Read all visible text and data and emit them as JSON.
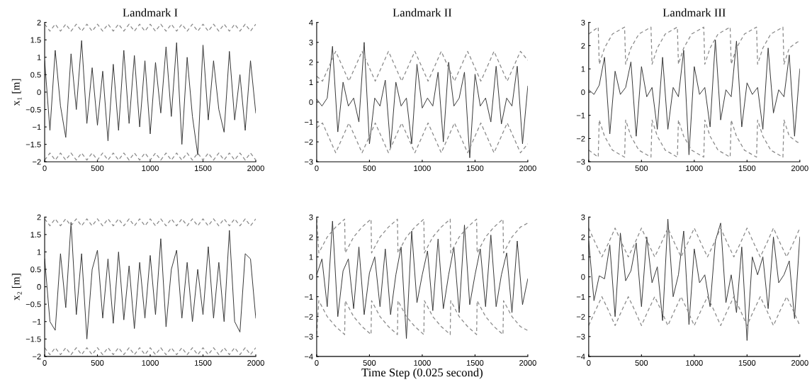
{
  "chart_data": [
    {
      "type": "line",
      "title": "Landmark I",
      "ylabel": "x₁ [m]",
      "xlim": [
        0,
        2000
      ],
      "xticks": [
        0,
        500,
        1000,
        1500,
        2000
      ],
      "ylim": [
        -2,
        2
      ],
      "yticks": [
        -2,
        -1.5,
        -1,
        -0.5,
        0,
        0.5,
        1,
        1.5,
        2
      ],
      "x": [
        0,
        50,
        100,
        150,
        200,
        250,
        300,
        350,
        400,
        450,
        500,
        550,
        600,
        650,
        700,
        750,
        800,
        850,
        900,
        950,
        1000,
        1050,
        1100,
        1150,
        1200,
        1250,
        1300,
        1350,
        1400,
        1450,
        1500,
        1550,
        1600,
        1650,
        1700,
        1750,
        1800,
        1850,
        1900,
        1950,
        2000
      ],
      "series": [
        {
          "color": "#333333",
          "values": [
            0.9,
            -1.1,
            1.2,
            -0.4,
            -1.3,
            1.1,
            -0.5,
            1.48,
            -0.9,
            0.7,
            -0.95,
            0.6,
            -1.4,
            0.8,
            -1.1,
            1.2,
            -0.9,
            1.05,
            -1.0,
            0.9,
            -1.2,
            0.85,
            -0.6,
            1.3,
            -0.7,
            1.42,
            -1.5,
            1.0,
            -0.7,
            -1.8,
            1.35,
            -0.8,
            0.9,
            -0.5,
            -1.15,
            1.17,
            -0.8,
            0.5,
            -1.1,
            0.9,
            -0.6
          ]
        },
        {
          "color": "#888888",
          "line_style": "dashed",
          "values": [
            1.95,
            1.75,
            1.95,
            1.75,
            1.95,
            1.75,
            1.95,
            1.75,
            1.95,
            1.75,
            1.95,
            1.75,
            1.95,
            1.75,
            1.95,
            1.75,
            1.95,
            1.75,
            1.95,
            1.75,
            1.95,
            1.75,
            1.95,
            1.75,
            1.95,
            1.75,
            1.95,
            1.75,
            1.95,
            1.75,
            1.95,
            1.75,
            1.95,
            1.75,
            1.95,
            1.75,
            1.95,
            1.75,
            1.95,
            1.75,
            1.95
          ]
        },
        {
          "color": "#888888",
          "line_style": "dashed",
          "values": [
            -1.95,
            -1.75,
            -1.95,
            -1.75,
            -1.95,
            -1.75,
            -1.95,
            -1.75,
            -1.95,
            -1.75,
            -1.95,
            -1.75,
            -1.95,
            -1.75,
            -1.95,
            -1.75,
            -1.95,
            -1.75,
            -1.95,
            -1.75,
            -1.95,
            -1.75,
            -1.95,
            -1.75,
            -1.95,
            -1.75,
            -1.95,
            -1.75,
            -1.95,
            -1.75,
            -1.95,
            -1.75,
            -1.95,
            -1.75,
            -1.95,
            -1.75,
            -1.95,
            -1.75,
            -1.95,
            -1.75,
            -1.95
          ]
        }
      ]
    },
    {
      "type": "line",
      "title": "Landmark II",
      "xlim": [
        0,
        2000
      ],
      "xticks": [
        0,
        500,
        1000,
        1500,
        2000
      ],
      "ylim": [
        -3,
        4
      ],
      "yticks": [
        -3,
        -2,
        -1,
        0,
        1,
        2,
        3,
        4
      ],
      "x": [
        0,
        50,
        100,
        150,
        200,
        250,
        300,
        350,
        400,
        450,
        500,
        550,
        600,
        650,
        700,
        750,
        800,
        850,
        900,
        950,
        1000,
        1050,
        1100,
        1150,
        1200,
        1250,
        1300,
        1350,
        1400,
        1450,
        1500,
        1550,
        1600,
        1650,
        1700,
        1750,
        1800,
        1850,
        1900,
        1950,
        2000
      ],
      "series": [
        {
          "color": "#333333",
          "values": [
            0.15,
            -0.2,
            0.2,
            2.8,
            -1.5,
            1.0,
            -0.2,
            0.2,
            -1.0,
            3.0,
            -2.1,
            0.2,
            -0.2,
            1.1,
            -2.3,
            1.0,
            -0.2,
            0.2,
            -2.1,
            1.9,
            -0.3,
            0.2,
            -0.2,
            1.5,
            -2.0,
            2.0,
            -0.2,
            0.2,
            1.5,
            -2.8,
            1.4,
            -0.2,
            0.2,
            -1.0,
            1.8,
            -1.1,
            0.2,
            -0.2,
            1.8,
            -2.1,
            0.8
          ]
        },
        {
          "color": "#888888",
          "line_style": "dashed",
          "x": [
            0,
            55,
            118,
            180,
            243,
            305,
            368,
            430,
            493,
            555,
            618,
            680,
            743,
            805,
            868,
            930,
            993,
            1055,
            1118,
            1180,
            1243,
            1305,
            1368,
            1430,
            1493,
            1555,
            1618,
            1680,
            1743,
            1805,
            1868,
            1930,
            2000
          ],
          "values": [
            1.3,
            1.05,
            1.8,
            2.55,
            1.8,
            1.05,
            1.8,
            2.55,
            1.8,
            1.05,
            1.8,
            2.55,
            1.8,
            1.05,
            1.8,
            2.55,
            1.8,
            1.05,
            1.8,
            2.55,
            1.8,
            1.05,
            1.8,
            2.55,
            1.8,
            1.05,
            1.8,
            2.55,
            1.8,
            1.05,
            1.8,
            2.55,
            2.1
          ]
        },
        {
          "color": "#888888",
          "line_style": "dashed",
          "x": [
            0,
            55,
            118,
            180,
            243,
            305,
            368,
            430,
            493,
            555,
            618,
            680,
            743,
            805,
            868,
            930,
            993,
            1055,
            1118,
            1180,
            1243,
            1305,
            1368,
            1430,
            1493,
            1555,
            1618,
            1680,
            1743,
            1805,
            1868,
            1930,
            2000
          ],
          "values": [
            -1.3,
            -1.05,
            -1.8,
            -2.55,
            -1.8,
            -1.05,
            -1.8,
            -2.55,
            -1.8,
            -1.05,
            -1.8,
            -2.55,
            -1.8,
            -1.05,
            -1.8,
            -2.55,
            -1.8,
            -1.05,
            -1.8,
            -2.55,
            -1.8,
            -1.05,
            -1.8,
            -2.55,
            -1.8,
            -1.05,
            -1.8,
            -2.55,
            -1.8,
            -1.05,
            -1.8,
            -2.55,
            -2.1
          ]
        }
      ]
    },
    {
      "type": "line",
      "title": "Landmark III",
      "xlim": [
        0,
        2000
      ],
      "xticks": [
        0,
        500,
        1000,
        1500,
        2000
      ],
      "ylim": [
        -3,
        3
      ],
      "yticks": [
        -3,
        -2,
        -1,
        0,
        1,
        2,
        3
      ],
      "x": [
        0,
        50,
        100,
        150,
        200,
        250,
        300,
        350,
        400,
        450,
        500,
        550,
        600,
        650,
        700,
        750,
        800,
        850,
        900,
        950,
        1000,
        1050,
        1100,
        1150,
        1200,
        1250,
        1300,
        1350,
        1400,
        1450,
        1500,
        1550,
        1600,
        1650,
        1700,
        1750,
        1800,
        1850,
        1900,
        1950,
        2000
      ],
      "series": [
        {
          "color": "#333333",
          "values": [
            0.1,
            -0.1,
            0.3,
            1.5,
            -1.8,
            0.9,
            -0.1,
            0.2,
            1.3,
            -1.9,
            1.1,
            -0.2,
            0.2,
            -1.6,
            1.5,
            -1.6,
            0.2,
            -0.2,
            1.8,
            -2.7,
            1.1,
            -0.1,
            0.2,
            -1.5,
            2.25,
            -1.2,
            0.1,
            -0.2,
            2.2,
            -1.5,
            0.4,
            -0.1,
            0.2,
            -1.6,
            1.9,
            -0.9,
            0.1,
            -0.2,
            1.6,
            -1.9,
            1.0
          ]
        },
        {
          "color": "#888888",
          "line_style": "dashed",
          "x": [
            0,
            90,
            100,
            150,
            225,
            340,
            350,
            400,
            475,
            590,
            600,
            650,
            725,
            840,
            850,
            900,
            975,
            1090,
            1100,
            1150,
            1225,
            1340,
            1350,
            1400,
            1475,
            1590,
            1600,
            1650,
            1725,
            1840,
            1850,
            1900,
            1975,
            2000
          ],
          "values": [
            2.5,
            2.8,
            1.2,
            1.9,
            2.5,
            2.8,
            1.2,
            1.9,
            2.5,
            2.8,
            1.2,
            1.9,
            2.5,
            2.8,
            1.2,
            1.9,
            2.5,
            2.8,
            1.2,
            1.9,
            2.5,
            2.8,
            1.2,
            1.9,
            2.5,
            2.8,
            1.2,
            1.9,
            2.5,
            2.8,
            1.2,
            1.9,
            2.15,
            2.2
          ]
        },
        {
          "color": "#888888",
          "line_style": "dashed",
          "x": [
            0,
            90,
            100,
            150,
            225,
            340,
            350,
            400,
            475,
            590,
            600,
            650,
            725,
            840,
            850,
            900,
            975,
            1090,
            1100,
            1150,
            1225,
            1340,
            1350,
            1400,
            1475,
            1590,
            1600,
            1650,
            1725,
            1840,
            1850,
            1900,
            1975,
            2000
          ],
          "values": [
            -2.5,
            -2.8,
            -1.2,
            -1.9,
            -2.5,
            -2.8,
            -1.2,
            -1.9,
            -2.5,
            -2.8,
            -1.2,
            -1.9,
            -2.5,
            -2.8,
            -1.2,
            -1.9,
            -2.5,
            -2.8,
            -1.2,
            -1.9,
            -2.5,
            -2.8,
            -1.2,
            -1.9,
            -2.5,
            -2.8,
            -1.2,
            -1.9,
            -2.5,
            -2.8,
            -1.2,
            -1.9,
            -2.15,
            -2.2
          ]
        }
      ]
    },
    {
      "type": "line",
      "ylabel": "x₂ [m]",
      "xlim": [
        0,
        2000
      ],
      "xticks": [
        0,
        500,
        1000,
        1500,
        2000
      ],
      "ylim": [
        -2,
        2
      ],
      "yticks": [
        -2,
        -1.5,
        -1,
        -0.5,
        0,
        0.5,
        1,
        1.5,
        2
      ],
      "x": [
        0,
        50,
        100,
        150,
        200,
        250,
        300,
        350,
        400,
        450,
        500,
        550,
        600,
        650,
        700,
        750,
        800,
        850,
        900,
        950,
        1000,
        1050,
        1100,
        1150,
        1200,
        1250,
        1300,
        1350,
        1400,
        1450,
        1500,
        1550,
        1600,
        1650,
        1700,
        1750,
        1800,
        1850,
        1900,
        1950,
        2000
      ],
      "series": [
        {
          "color": "#333333",
          "values": [
            0.8,
            -1.0,
            -1.25,
            0.95,
            -0.6,
            1.85,
            -0.8,
            0.95,
            -1.5,
            0.5,
            1.05,
            -0.9,
            0.8,
            -1.05,
            1.0,
            -0.95,
            0.6,
            -1.2,
            0.7,
            -0.9,
            0.9,
            -0.8,
            1.38,
            -1.15,
            0.5,
            1.05,
            -0.9,
            0.7,
            -1.0,
            0.5,
            -0.8,
            1.15,
            -0.9,
            0.7,
            -1.0,
            1.62,
            -1.0,
            -1.3,
            0.95,
            0.8,
            -0.9
          ]
        },
        {
          "color": "#888888",
          "line_style": "dashed",
          "values": [
            1.95,
            1.75,
            1.95,
            1.75,
            1.95,
            1.75,
            1.95,
            1.75,
            1.95,
            1.75,
            1.95,
            1.75,
            1.95,
            1.75,
            1.95,
            1.75,
            1.95,
            1.75,
            1.95,
            1.75,
            1.95,
            1.75,
            1.95,
            1.75,
            1.95,
            1.75,
            1.95,
            1.75,
            1.95,
            1.75,
            1.95,
            1.75,
            1.95,
            1.75,
            1.95,
            1.75,
            1.95,
            1.75,
            1.95,
            1.75,
            1.95
          ]
        },
        {
          "color": "#888888",
          "line_style": "dashed",
          "values": [
            -1.75,
            -1.95,
            -1.75,
            -1.95,
            -1.75,
            -1.95,
            -1.75,
            -1.95,
            -1.75,
            -1.95,
            -1.75,
            -1.95,
            -1.75,
            -1.95,
            -1.75,
            -1.95,
            -1.75,
            -1.95,
            -1.75,
            -1.95,
            -1.75,
            -1.95,
            -1.75,
            -1.95,
            -1.75,
            -1.95,
            -1.75,
            -1.95,
            -1.75,
            -1.95,
            -1.75,
            -1.95,
            -1.75,
            -1.95,
            -1.75,
            -1.95,
            -1.75,
            -1.95,
            -1.75,
            -1.95,
            -1.75
          ]
        }
      ]
    },
    {
      "type": "line",
      "xlabel": "Time Step (0.025 second)",
      "xlim": [
        0,
        2000
      ],
      "xticks": [
        0,
        500,
        1000,
        1500,
        2000
      ],
      "ylim": [
        -4,
        3
      ],
      "yticks": [
        -4,
        -3,
        -2,
        -1,
        0,
        1,
        2,
        3
      ],
      "x": [
        0,
        50,
        100,
        150,
        200,
        250,
        300,
        350,
        400,
        450,
        500,
        550,
        600,
        650,
        700,
        750,
        800,
        850,
        900,
        950,
        1000,
        1050,
        1100,
        1150,
        1200,
        1250,
        1300,
        1350,
        1400,
        1450,
        1500,
        1550,
        1600,
        1650,
        1700,
        1750,
        1800,
        1850,
        1900,
        1950,
        2000
      ],
      "series": [
        {
          "color": "#333333",
          "values": [
            0.1,
            0.9,
            -1.5,
            2.8,
            -2.0,
            0.3,
            0.9,
            -1.6,
            1.5,
            -1.9,
            0.2,
            1.0,
            -1.5,
            1.4,
            -1.9,
            0.1,
            1.5,
            -3.1,
            2.3,
            -1.3,
            0.1,
            1.3,
            -1.7,
            1.9,
            -1.6,
            0.1,
            1.5,
            -1.8,
            2.6,
            -1.4,
            0.1,
            1.4,
            -1.5,
            2.1,
            -1.5,
            0.1,
            1.2,
            -1.8,
            1.8,
            -1.4,
            -0.1
          ]
        },
        {
          "color": "#888888",
          "line_style": "dashed",
          "x": [
            0,
            20,
            100,
            180,
            265,
            270,
            350,
            430,
            515,
            520,
            600,
            680,
            765,
            770,
            850,
            930,
            1015,
            1020,
            1100,
            1180,
            1265,
            1270,
            1350,
            1430,
            1515,
            1520,
            1600,
            1680,
            1765,
            1770,
            1850,
            1930,
            2000
          ],
          "values": [
            2.9,
            1.2,
            2.0,
            2.5,
            2.9,
            1.2,
            2.0,
            2.5,
            2.9,
            1.2,
            2.0,
            2.5,
            2.9,
            1.2,
            2.0,
            2.5,
            2.9,
            1.2,
            2.0,
            2.5,
            2.9,
            1.2,
            2.0,
            2.5,
            2.9,
            1.2,
            2.0,
            2.5,
            2.9,
            1.2,
            2.0,
            2.5,
            2.7
          ]
        },
        {
          "color": "#888888",
          "line_style": "dashed",
          "x": [
            0,
            20,
            100,
            180,
            265,
            270,
            350,
            430,
            515,
            520,
            600,
            680,
            765,
            770,
            850,
            930,
            1015,
            1020,
            1100,
            1180,
            1265,
            1270,
            1350,
            1430,
            1515,
            1520,
            1600,
            1680,
            1765,
            1770,
            1850,
            1930,
            2000
          ],
          "values": [
            -2.9,
            -1.2,
            -2.0,
            -2.5,
            -2.9,
            -1.2,
            -2.0,
            -2.5,
            -2.9,
            -1.2,
            -2.0,
            -2.5,
            -2.9,
            -1.2,
            -2.0,
            -2.5,
            -2.9,
            -1.2,
            -2.0,
            -2.5,
            -2.9,
            -1.2,
            -2.0,
            -2.5,
            -2.9,
            -1.2,
            -2.0,
            -2.5,
            -2.9,
            -1.2,
            -2.0,
            -2.5,
            -2.7
          ]
        }
      ]
    },
    {
      "type": "line",
      "xlim": [
        0,
        2000
      ],
      "xticks": [
        0,
        500,
        1000,
        1500,
        2000
      ],
      "ylim": [
        -4,
        3
      ],
      "yticks": [
        -4,
        -3,
        -2,
        -1,
        0,
        1,
        2,
        3
      ],
      "x": [
        0,
        50,
        100,
        150,
        200,
        250,
        300,
        350,
        400,
        450,
        500,
        550,
        600,
        650,
        700,
        750,
        800,
        850,
        900,
        950,
        1000,
        1050,
        1100,
        1150,
        1200,
        1250,
        1300,
        1350,
        1400,
        1450,
        1500,
        1550,
        1600,
        1650,
        1700,
        1750,
        1800,
        1850,
        1900,
        1950,
        2000
      ],
      "series": [
        {
          "color": "#333333",
          "values": [
            1.8,
            -1.2,
            0.05,
            -0.1,
            1.6,
            -2.0,
            2.2,
            -0.2,
            0.3,
            1.7,
            -1.5,
            2.0,
            -0.3,
            0.5,
            -2.2,
            2.9,
            -1.0,
            0.1,
            2.3,
            -2.4,
            1.4,
            -0.3,
            0.1,
            -1.5,
            1.8,
            2.7,
            -1.3,
            0.1,
            -1.8,
            1.5,
            -3.2,
            1.0,
            0.1,
            1.0,
            -1.6,
            2.0,
            -0.3,
            0.1,
            0.8,
            -2.1,
            2.0
          ]
        },
        {
          "color": "#888888",
          "line_style": "dashed",
          "x": [
            0,
            63,
            125,
            188,
            250,
            313,
            375,
            438,
            500,
            563,
            625,
            688,
            750,
            813,
            875,
            938,
            1000,
            1063,
            1125,
            1188,
            1250,
            1313,
            1375,
            1438,
            1500,
            1563,
            1625,
            1688,
            1750,
            1813,
            1875,
            1938,
            2000
          ],
          "values": [
            2.45,
            1.7,
            1.0,
            1.7,
            2.45,
            1.7,
            1.0,
            1.7,
            2.45,
            1.7,
            1.0,
            1.7,
            2.45,
            1.7,
            1.0,
            1.7,
            2.45,
            1.7,
            1.0,
            1.7,
            2.45,
            1.7,
            1.0,
            1.7,
            2.45,
            1.7,
            1.0,
            1.7,
            2.45,
            1.7,
            1.0,
            1.7,
            2.45
          ]
        },
        {
          "color": "#888888",
          "line_style": "dashed",
          "x": [
            0,
            63,
            125,
            188,
            250,
            313,
            375,
            438,
            500,
            563,
            625,
            688,
            750,
            813,
            875,
            938,
            1000,
            1063,
            1125,
            1188,
            1250,
            1313,
            1375,
            1438,
            1500,
            1563,
            1625,
            1688,
            1750,
            1813,
            1875,
            1938,
            2000
          ],
          "values": [
            -2.45,
            -1.7,
            -1.0,
            -1.7,
            -2.45,
            -1.7,
            -1.0,
            -1.7,
            -2.45,
            -1.7,
            -1.0,
            -1.7,
            -2.45,
            -1.7,
            -1.0,
            -1.7,
            -2.45,
            -1.7,
            -1.0,
            -1.7,
            -2.45,
            -1.7,
            -1.0,
            -1.7,
            -2.45,
            -1.7,
            -1.0,
            -1.7,
            -2.45,
            -1.7,
            -1.0,
            -1.7,
            -2.45
          ]
        }
      ]
    }
  ]
}
